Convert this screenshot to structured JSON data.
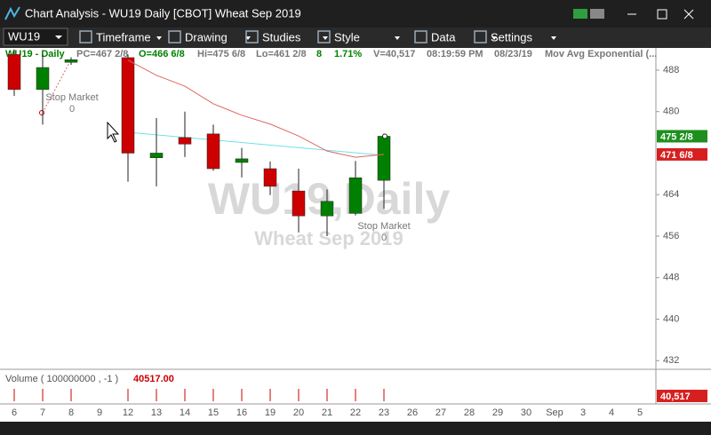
{
  "window": {
    "title": "Chart Analysis - WU19 Daily [CBOT] Wheat Sep 2019"
  },
  "toolbar": {
    "symbol": "WU19",
    "items": [
      "Timeframe",
      "Drawing",
      "Studies",
      "Style",
      "Data",
      "Settings"
    ]
  },
  "status_bar": [
    "WU19 - Daily",
    "PC=467 2/8",
    "O=466 6/8",
    "Hi=475 6/8",
    "Lo=461 2/8",
    "8",
    "1.71%",
    "V=40,517",
    "08:19:59 PM",
    "08/23/19",
    "Mov Avg Exponential (..."
  ],
  "chart_data": {
    "type": "candlestick",
    "watermark": "WU19,Daily",
    "watermark_subtitle": "Wheat Sep 2019",
    "categories": [
      "6",
      "7",
      "8",
      "9",
      "12",
      "13",
      "14",
      "15",
      "16",
      "19",
      "20",
      "21",
      "22",
      "23",
      "26",
      "27",
      "28",
      "29",
      "30",
      "Sep",
      "3",
      "4",
      "5"
    ],
    "series": [
      {
        "name": "WU19",
        "up_color": "#008000",
        "down_color": "#cc0000",
        "open": [
          491,
          484.25,
          489.5,
          null,
          490.4,
          471.1,
          475,
          475.7,
          470.2,
          469,
          464.7,
          459.9,
          460.4,
          466.75,
          null,
          null,
          null,
          null,
          null,
          null,
          null,
          null,
          null
        ],
        "high": [
          492,
          491,
          490.5,
          null,
          491,
          478.75,
          480,
          477.5,
          473,
          470.4,
          469,
          465,
          470.5,
          475.75,
          null,
          null,
          null,
          null,
          null,
          null,
          null,
          null,
          null
        ],
        "low": [
          483,
          477.5,
          489,
          null,
          466.5,
          465.6,
          471.25,
          468.6,
          467.3,
          463.9,
          456.7,
          456,
          460,
          461.25,
          null,
          null,
          null,
          null,
          null,
          null,
          null,
          null,
          null
        ],
        "close": [
          484.25,
          488.5,
          490,
          null,
          472,
          472,
          473.75,
          469,
          470.9,
          465.6,
          459.9,
          462.7,
          467.25,
          475.25,
          null,
          null,
          null,
          null,
          null,
          null,
          null,
          null,
          null
        ]
      },
      {
        "name": "Mov Avg Exponential",
        "color": "#e06666",
        "values": [
          null,
          null,
          null,
          null,
          489.9,
          487,
          484.9,
          481.5,
          479.3,
          477.6,
          475.3,
          472.4,
          471.2,
          471.75,
          null,
          null,
          null,
          null,
          null,
          null,
          null,
          null,
          null
        ]
      }
    ],
    "last_price": {
      "value": 475.25,
      "label": "475 2/8"
    },
    "ema_last": {
      "value": 471.75,
      "label": "471 6/8"
    },
    "ylim": [
      430.5,
      492.1
    ],
    "yticks": [
      432,
      440,
      448,
      456,
      464,
      480,
      488
    ],
    "annotations": [
      {
        "text": "Stop Market",
        "qty": "0"
      },
      {
        "text": "Stop Market",
        "qty": "0"
      }
    ],
    "volume": {
      "label": "Volume ( 100000000 , -1 )",
      "value_label": "40517.00",
      "axis_label": "40,517"
    }
  }
}
